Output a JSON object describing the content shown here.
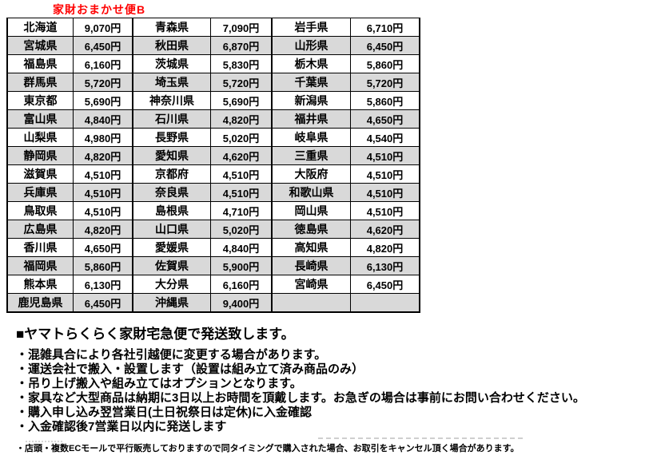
{
  "page": {
    "title": "家財おまかせ便B",
    "title_color": "#ff0000",
    "stripe_color": "#d9d9d9",
    "border_color": "#000000"
  },
  "table": {
    "rows": [
      {
        "cells": [
          {
            "name": "北海道",
            "price": "9,070円"
          },
          {
            "name": "青森県",
            "price": "7,090円"
          },
          {
            "name": "岩手県",
            "price": "6,710円"
          }
        ]
      },
      {
        "cells": [
          {
            "name": "宮城県",
            "price": "6,450円"
          },
          {
            "name": "秋田県",
            "price": "6,870円"
          },
          {
            "name": "山形県",
            "price": "6,450円"
          }
        ]
      },
      {
        "cells": [
          {
            "name": "福島県",
            "price": "6,160円"
          },
          {
            "name": "茨城県",
            "price": "5,830円"
          },
          {
            "name": "栃木県",
            "price": "5,860円"
          }
        ]
      },
      {
        "cells": [
          {
            "name": "群馬県",
            "price": "5,720円"
          },
          {
            "name": "埼玉県",
            "price": "5,720円"
          },
          {
            "name": "千葉県",
            "price": "5,720円"
          }
        ]
      },
      {
        "cells": [
          {
            "name": "東京都",
            "price": "5,690円"
          },
          {
            "name": "神奈川県",
            "price": "5,690円"
          },
          {
            "name": "新潟県",
            "price": "5,860円"
          }
        ]
      },
      {
        "cells": [
          {
            "name": "富山県",
            "price": "4,840円"
          },
          {
            "name": "石川県",
            "price": "4,820円"
          },
          {
            "name": "福井県",
            "price": "4,650円"
          }
        ]
      },
      {
        "cells": [
          {
            "name": "山梨県",
            "price": "4,980円"
          },
          {
            "name": "長野県",
            "price": "5,020円"
          },
          {
            "name": "岐阜県",
            "price": "4,540円"
          }
        ]
      },
      {
        "cells": [
          {
            "name": "静岡県",
            "price": "4,820円"
          },
          {
            "name": "愛知県",
            "price": "4,620円"
          },
          {
            "name": "三重県",
            "price": "4,510円"
          }
        ]
      },
      {
        "cells": [
          {
            "name": "滋賀県",
            "price": "4,510円"
          },
          {
            "name": "京都府",
            "price": "4,510円"
          },
          {
            "name": "大阪府",
            "price": "4,510円"
          }
        ]
      },
      {
        "cells": [
          {
            "name": "兵庫県",
            "price": "4,510円"
          },
          {
            "name": "奈良県",
            "price": "4,510円"
          },
          {
            "name": "和歌山県",
            "price": "4,510円"
          }
        ]
      },
      {
        "cells": [
          {
            "name": "鳥取県",
            "price": "4,510円"
          },
          {
            "name": "島根県",
            "price": "4,710円"
          },
          {
            "name": "岡山県",
            "price": "4,510円"
          }
        ]
      },
      {
        "cells": [
          {
            "name": "広島県",
            "price": "4,820円"
          },
          {
            "name": "山口県",
            "price": "5,020円"
          },
          {
            "name": "徳島県",
            "price": "4,620円"
          }
        ]
      },
      {
        "cells": [
          {
            "name": "香川県",
            "price": "4,650円"
          },
          {
            "name": "愛媛県",
            "price": "4,840円"
          },
          {
            "name": "高知県",
            "price": "4,820円"
          }
        ]
      },
      {
        "cells": [
          {
            "name": "福岡県",
            "price": "5,860円"
          },
          {
            "name": "佐賀県",
            "price": "5,900円"
          },
          {
            "name": "長崎県",
            "price": "6,130円"
          }
        ]
      },
      {
        "cells": [
          {
            "name": "熊本県",
            "price": "6,130円"
          },
          {
            "name": "大分県",
            "price": "6,160円"
          },
          {
            "name": "宮崎県",
            "price": "6,450円"
          }
        ]
      },
      {
        "cells": [
          {
            "name": "鹿児島県",
            "price": "6,450円"
          },
          {
            "name": "沖縄県",
            "price": "9,400円"
          },
          {
            "name": "",
            "price": ""
          }
        ]
      }
    ]
  },
  "notes": {
    "heading": "■ヤマトらくらく家財宅急便で発送致します。",
    "bullets": [
      "・混雑具合により各社引越便に変更する場合があります。",
      "・運送会社で搬入・設置します（設置は組み立て済み商品のみ）",
      "・吊り上げ搬入や組み立てはオプションとなります。",
      "・家具など大型商品は納期に3日以上お時間を頂戴します。お急ぎの場合は事前にお問い合わせください。",
      "・購入申し込み翌営業日(土日祝祭日は定休)に入金確認",
      "・入金確認後7営業日以内に発送します"
    ],
    "small_note": "・店頭・複数ECモールで平行販売しておりますので同タイミングで購入された場合、お取引をキャンセル頂く場合があります。"
  }
}
